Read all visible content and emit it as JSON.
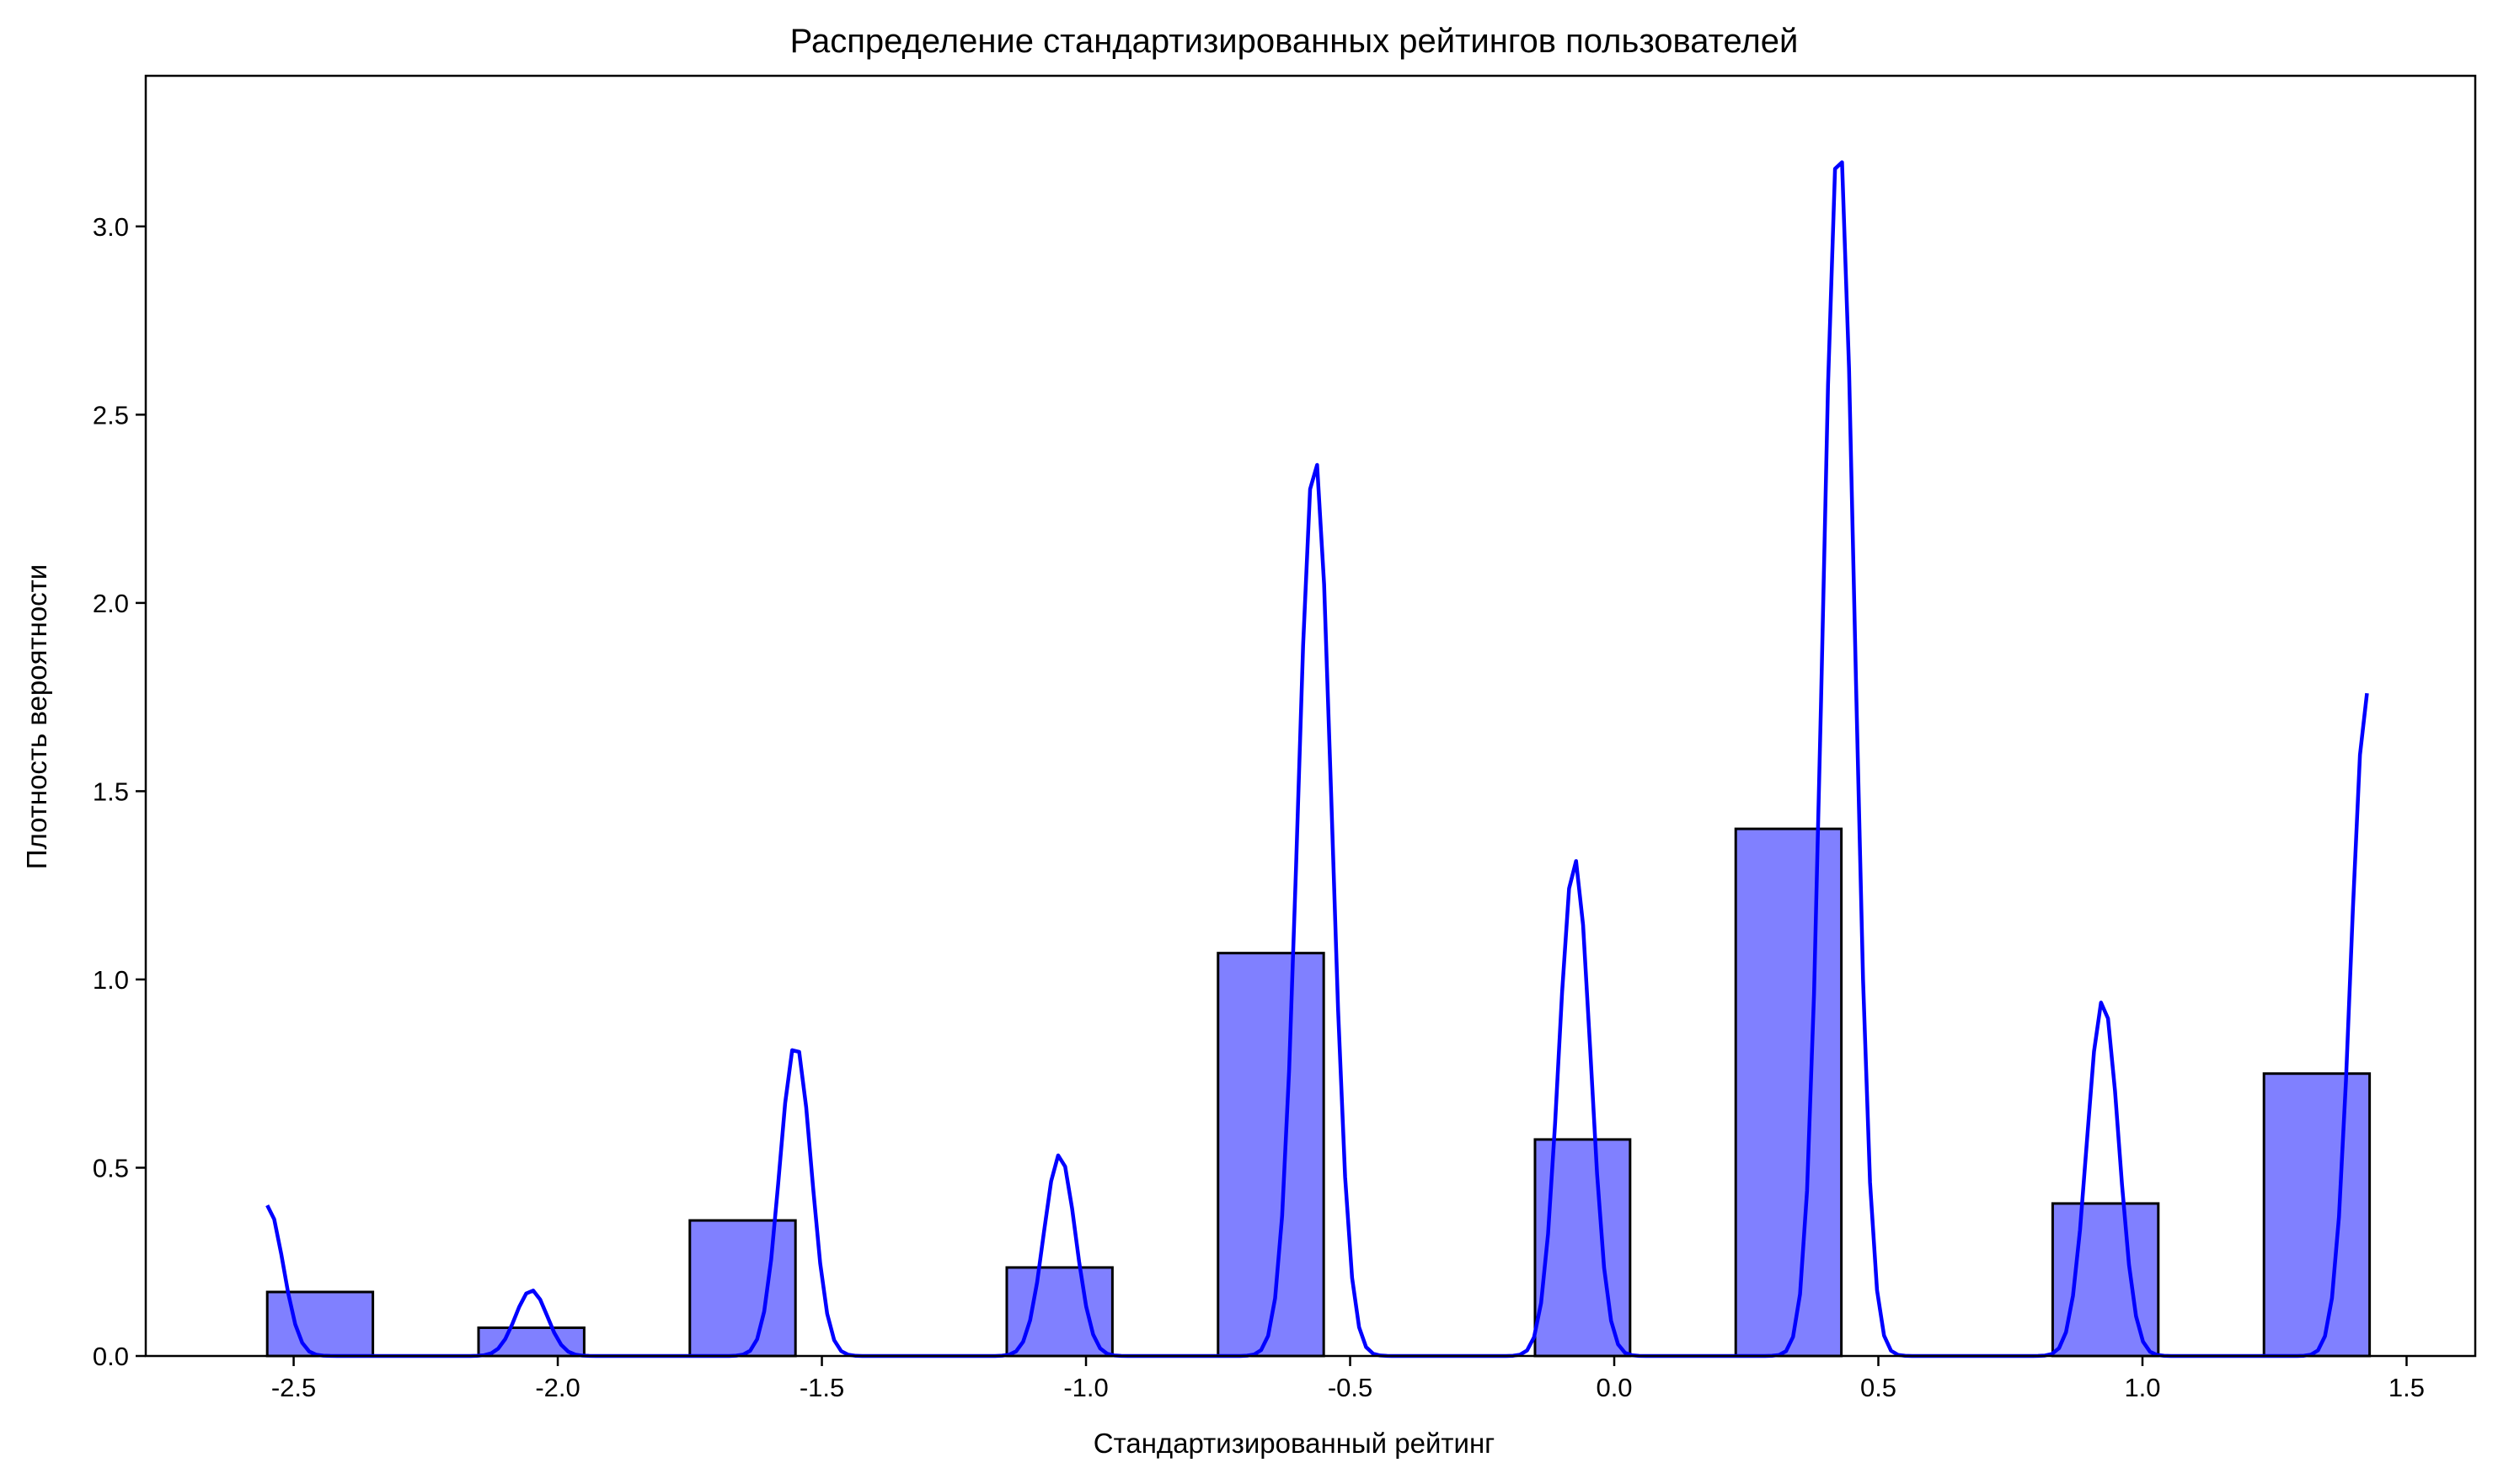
{
  "chart_data": {
    "type": "bar",
    "title": "Распределение стандартизированных рейтингов пользователей",
    "xlabel": "Стандартизированный рейтинг",
    "ylabel": "Плотность вероятности",
    "xlim": [
      -2.78,
      1.63
    ],
    "ylim": [
      0,
      3.4
    ],
    "x_ticks": [
      -2.5,
      -2.0,
      -1.5,
      -1.0,
      -0.5,
      0.0,
      0.5,
      1.0,
      1.5
    ],
    "x_tick_labels": [
      "-2.5",
      "-2.0",
      "-1.5",
      "-1.0",
      "-0.5",
      "0.0",
      "0.5",
      "1.0",
      "1.5"
    ],
    "y_ticks": [
      0.0,
      0.5,
      1.0,
      1.5,
      2.0,
      2.5,
      3.0
    ],
    "y_tick_labels": [
      "0.0",
      "0.5",
      "1.0",
      "1.5",
      "2.0",
      "2.5",
      "3.0"
    ],
    "grid": false,
    "legend": false,
    "colors": {
      "bar_fill": "#8080ff",
      "bar_edge": "#000000",
      "kde_line": "#0000ff"
    },
    "bars": [
      {
        "x0": -2.55,
        "x1": -2.35,
        "height": 0.17
      },
      {
        "x0": -2.15,
        "x1": -1.95,
        "height": 0.075
      },
      {
        "x0": -1.75,
        "x1": -1.55,
        "height": 0.36
      },
      {
        "x0": -1.15,
        "x1": -0.95,
        "height": 0.235
      },
      {
        "x0": -0.75,
        "x1": -0.55,
        "height": 1.07
      },
      {
        "x0": -0.15,
        "x1": 0.03,
        "height": 0.575
      },
      {
        "x0": 0.23,
        "x1": 0.43,
        "height": 1.4
      },
      {
        "x0": 0.83,
        "x1": 1.03,
        "height": 0.405
      },
      {
        "x0": 1.23,
        "x1": 1.43,
        "height": 0.75
      }
    ],
    "kde_peaks": [
      {
        "center": -2.55,
        "height": 0.4,
        "sigma": 0.03,
        "edge": "left"
      },
      {
        "center": -2.05,
        "height": 0.175,
        "sigma": 0.03
      },
      {
        "center": -1.55,
        "height": 0.83,
        "sigma": 0.03
      },
      {
        "center": -1.05,
        "height": 0.535,
        "sigma": 0.03
      },
      {
        "center": -0.567,
        "height": 2.39,
        "sigma": 0.032
      },
      {
        "center": -0.075,
        "height": 1.32,
        "sigma": 0.03
      },
      {
        "center": 0.425,
        "height": 3.24,
        "sigma": 0.03
      },
      {
        "center": 0.925,
        "height": 0.945,
        "sigma": 0.03
      },
      {
        "center": 1.425,
        "height": 1.76,
        "sigma": 0.03,
        "edge": "right"
      }
    ],
    "kde_range": [
      -2.55,
      1.425
    ]
  }
}
